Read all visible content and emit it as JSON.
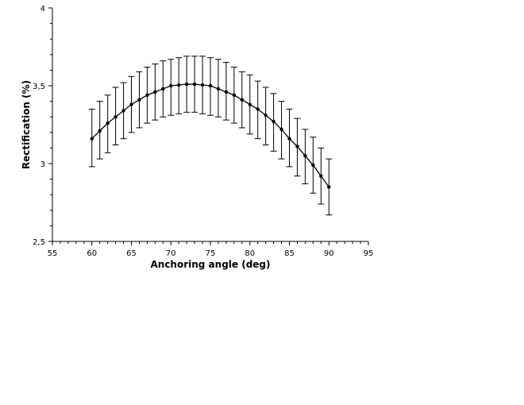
{
  "chart_data": {
    "type": "line",
    "title": "",
    "xlabel": "Anchoring angle (deg)",
    "ylabel": "Rectification (%)",
    "xlim": [
      55,
      95
    ],
    "ylim": [
      2.5,
      4
    ],
    "x_ticks": [
      "55",
      "60",
      "65",
      "70",
      "75",
      "80",
      "85",
      "90",
      "95"
    ],
    "y_ticks": [
      "2,5",
      "3",
      "3,5",
      "4"
    ],
    "x_tick_values": [
      55,
      60,
      65,
      70,
      75,
      80,
      85,
      90,
      95
    ],
    "y_tick_values": [
      2.5,
      3,
      3.5,
      4
    ],
    "grid": false,
    "legend": "none",
    "colors": {
      "line": "#000000"
    },
    "series": [
      {
        "x": [
          60,
          61,
          62,
          63,
          64,
          65,
          66,
          67,
          68,
          69,
          70,
          71,
          72,
          73,
          74,
          75,
          76,
          77,
          78,
          79,
          80,
          81,
          82,
          83,
          84,
          85,
          86,
          87,
          88,
          89,
          90
        ],
        "y": [
          3.16,
          3.21,
          3.26,
          3.3,
          3.34,
          3.38,
          3.41,
          3.44,
          3.46,
          3.48,
          3.5,
          3.505,
          3.51,
          3.51,
          3.505,
          3.5,
          3.48,
          3.46,
          3.44,
          3.41,
          3.38,
          3.35,
          3.31,
          3.27,
          3.22,
          3.16,
          3.11,
          3.05,
          2.99,
          2.92,
          2.85
        ],
        "err_upper": [
          3.35,
          3.4,
          3.44,
          3.49,
          3.52,
          3.56,
          3.59,
          3.62,
          3.64,
          3.66,
          3.67,
          3.68,
          3.69,
          3.69,
          3.69,
          3.68,
          3.67,
          3.65,
          3.62,
          3.59,
          3.57,
          3.53,
          3.49,
          3.45,
          3.4,
          3.35,
          3.29,
          3.22,
          3.17,
          3.1,
          3.03
        ],
        "err_lower": [
          2.98,
          3.03,
          3.07,
          3.12,
          3.16,
          3.2,
          3.23,
          3.26,
          3.28,
          3.3,
          3.31,
          3.32,
          3.33,
          3.33,
          3.32,
          3.31,
          3.3,
          3.28,
          3.26,
          3.23,
          3.19,
          3.16,
          3.12,
          3.08,
          3.03,
          2.98,
          2.92,
          2.87,
          2.81,
          2.74,
          2.67
        ]
      }
    ]
  }
}
